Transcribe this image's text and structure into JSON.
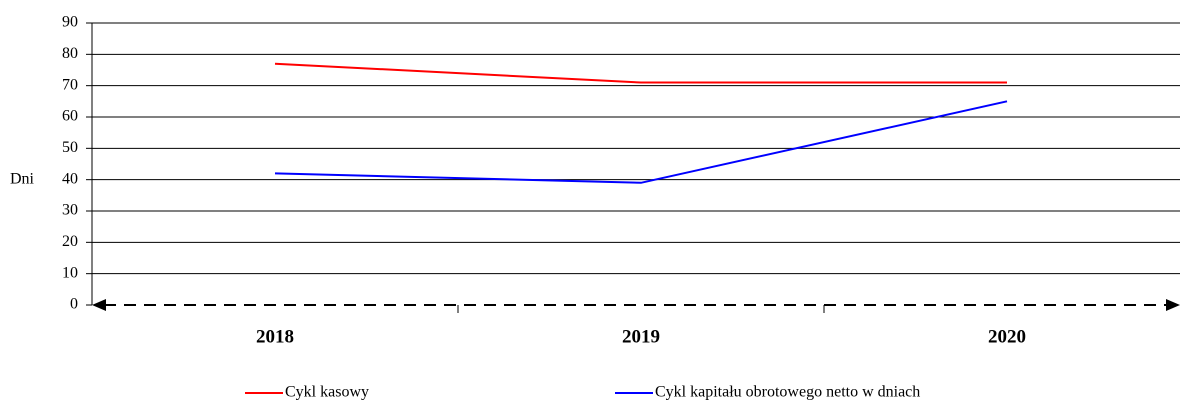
{
  "chart_data": {
    "type": "line",
    "y_label": "Dni",
    "categories": [
      "2018",
      "2019",
      "2020"
    ],
    "series": [
      {
        "name": "Cykl kasowy",
        "color": "#ff0000",
        "values": [
          77,
          71,
          71
        ]
      },
      {
        "name": "Cykl kapitału obrotowego netto w dniach",
        "color": "#0000ff",
        "values": [
          42,
          39,
          65
        ]
      }
    ],
    "ylim": [
      0,
      90
    ],
    "yticks": [
      0,
      10,
      20,
      30,
      40,
      50,
      60,
      70,
      80,
      90
    ],
    "grid": true,
    "legend": "bottom"
  }
}
